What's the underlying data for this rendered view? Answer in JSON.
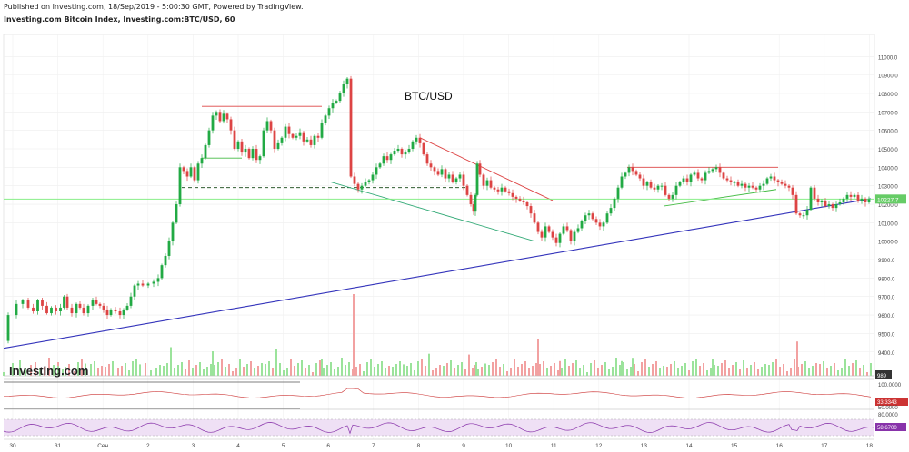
{
  "header": {
    "published": "Published on Investing.com, 18/Sep/2019 - 5:00:30 GMT, Powered by TradingView.",
    "symbol": "Investing.com Bitcoin Index, Investing.com:BTC/USD, 60"
  },
  "annotation": "BTC/USD",
  "logo": "Investing.com",
  "colors": {
    "up": "#22aa44",
    "down": "#dd4444",
    "up_vol": "#9be39b",
    "down_vol": "#f2a1a1",
    "trend_support": "#3333bb",
    "resistance": "#dd4444",
    "channel": "#33aa77",
    "support_green": "#44bb44",
    "dashed": "#114411",
    "price_line": "#88ee88",
    "price_badge": "#66cc66",
    "indicator2": "#cc3333",
    "rsi": "#8833aa",
    "rsi_fill": "#efe0f5",
    "vol_badge": "#333333"
  },
  "chart_data": {
    "type": "candlestick",
    "interval": "60",
    "ylim": [
      9330,
      11080
    ],
    "y_ticks": [
      "11000.0",
      "10900.0",
      "10800.0",
      "10700.0",
      "10600.0",
      "10500.0",
      "10400.0",
      "10300.0",
      "10200.0",
      "10100.0",
      "10000.0",
      "9900.0",
      "9800.0",
      "9700.0",
      "9600.0",
      "9500.0",
      "9400.0"
    ],
    "x_ticks": [
      "30",
      "31",
      "Сен",
      "2",
      "3",
      "4",
      "5",
      "6",
      "7",
      "8",
      "9",
      "10",
      "11",
      "12",
      "13",
      "14",
      "15",
      "16",
      "17",
      "18"
    ],
    "last_price": "10227.7",
    "price_path": [
      [
        0,
        9460
      ],
      [
        10,
        9600
      ],
      [
        18,
        9660
      ],
      [
        24,
        9680
      ],
      [
        30,
        9640
      ],
      [
        35,
        9620
      ],
      [
        40,
        9680
      ],
      [
        45,
        9650
      ],
      [
        50,
        9610
      ],
      [
        55,
        9640
      ],
      [
        60,
        9620
      ],
      [
        65,
        9640
      ],
      [
        68,
        9700
      ],
      [
        72,
        9640
      ],
      [
        78,
        9610
      ],
      [
        82,
        9660
      ],
      [
        86,
        9640
      ],
      [
        90,
        9610
      ],
      [
        96,
        9650
      ],
      [
        100,
        9680
      ],
      [
        104,
        9660
      ],
      [
        108,
        9650
      ],
      [
        112,
        9630
      ],
      [
        116,
        9600
      ],
      [
        120,
        9630
      ],
      [
        126,
        9620
      ],
      [
        130,
        9600
      ],
      [
        134,
        9630
      ],
      [
        138,
        9650
      ],
      [
        142,
        9700
      ],
      [
        146,
        9760
      ],
      [
        150,
        9770
      ],
      [
        156,
        9760
      ],
      [
        162,
        9770
      ],
      [
        168,
        9780
      ],
      [
        172,
        9800
      ],
      [
        176,
        9870
      ],
      [
        180,
        9920
      ],
      [
        184,
        10000
      ],
      [
        188,
        10100
      ],
      [
        192,
        10200
      ],
      [
        196,
        10400
      ],
      [
        200,
        10380
      ],
      [
        204,
        10350
      ],
      [
        208,
        10400
      ],
      [
        212,
        10330
      ],
      [
        216,
        10420
      ],
      [
        220,
        10450
      ],
      [
        224,
        10520
      ],
      [
        228,
        10600
      ],
      [
        232,
        10680
      ],
      [
        236,
        10700
      ],
      [
        240,
        10650
      ],
      [
        244,
        10690
      ],
      [
        248,
        10660
      ],
      [
        252,
        10600
      ],
      [
        256,
        10500
      ],
      [
        260,
        10540
      ],
      [
        264,
        10480
      ],
      [
        268,
        10500
      ],
      [
        272,
        10450
      ],
      [
        276,
        10500
      ],
      [
        280,
        10440
      ],
      [
        284,
        10460
      ],
      [
        288,
        10600
      ],
      [
        292,
        10650
      ],
      [
        296,
        10600
      ],
      [
        300,
        10500
      ],
      [
        304,
        10530
      ],
      [
        308,
        10560
      ],
      [
        312,
        10620
      ],
      [
        316,
        10580
      ],
      [
        320,
        10560
      ],
      [
        324,
        10570
      ],
      [
        328,
        10590
      ],
      [
        332,
        10540
      ],
      [
        336,
        10550
      ],
      [
        340,
        10520
      ],
      [
        344,
        10570
      ],
      [
        348,
        10560
      ],
      [
        352,
        10640
      ],
      [
        356,
        10680
      ],
      [
        360,
        10720
      ],
      [
        364,
        10750
      ],
      [
        368,
        10760
      ],
      [
        372,
        10800
      ],
      [
        376,
        10850
      ],
      [
        380,
        10880
      ],
      [
        384,
        10350
      ],
      [
        388,
        10310
      ],
      [
        392,
        10280
      ],
      [
        396,
        10300
      ],
      [
        400,
        10320
      ],
      [
        404,
        10330
      ],
      [
        408,
        10360
      ],
      [
        412,
        10400
      ],
      [
        416,
        10420
      ],
      [
        420,
        10460
      ],
      [
        424,
        10440
      ],
      [
        428,
        10470
      ],
      [
        432,
        10490
      ],
      [
        436,
        10500
      ],
      [
        440,
        10470
      ],
      [
        444,
        10480
      ],
      [
        448,
        10500
      ],
      [
        452,
        10540
      ],
      [
        456,
        10560
      ],
      [
        460,
        10530
      ],
      [
        464,
        10470
      ],
      [
        468,
        10420
      ],
      [
        472,
        10400
      ],
      [
        476,
        10380
      ],
      [
        480,
        10360
      ],
      [
        484,
        10390
      ],
      [
        488,
        10340
      ],
      [
        492,
        10360
      ],
      [
        496,
        10320
      ],
      [
        500,
        10340
      ],
      [
        504,
        10360
      ],
      [
        508,
        10300
      ],
      [
        512,
        10250
      ],
      [
        516,
        10200
      ],
      [
        518,
        10160
      ],
      [
        520,
        10250
      ],
      [
        522,
        10420
      ],
      [
        526,
        10360
      ],
      [
        530,
        10300
      ],
      [
        534,
        10330
      ],
      [
        538,
        10290
      ],
      [
        542,
        10280
      ],
      [
        546,
        10270
      ],
      [
        550,
        10290
      ],
      [
        554,
        10270
      ],
      [
        558,
        10260
      ],
      [
        562,
        10240
      ],
      [
        566,
        10230
      ],
      [
        570,
        10220
      ],
      [
        574,
        10210
      ],
      [
        578,
        10190
      ],
      [
        582,
        10150
      ],
      [
        586,
        10100
      ],
      [
        590,
        10050
      ],
      [
        594,
        10020
      ],
      [
        598,
        10080
      ],
      [
        602,
        10050
      ],
      [
        606,
        10020
      ],
      [
        610,
        9990
      ],
      [
        614,
        10040
      ],
      [
        618,
        10080
      ],
      [
        622,
        10060
      ],
      [
        626,
        10000
      ],
      [
        630,
        10050
      ],
      [
        634,
        10070
      ],
      [
        638,
        10110
      ],
      [
        642,
        10140
      ],
      [
        646,
        10150
      ],
      [
        650,
        10120
      ],
      [
        654,
        10100
      ],
      [
        658,
        10080
      ],
      [
        662,
        10100
      ],
      [
        666,
        10150
      ],
      [
        670,
        10180
      ],
      [
        674,
        10230
      ],
      [
        678,
        10290
      ],
      [
        682,
        10350
      ],
      [
        686,
        10370
      ],
      [
        690,
        10400
      ],
      [
        694,
        10380
      ],
      [
        698,
        10360
      ],
      [
        702,
        10340
      ],
      [
        706,
        10300
      ],
      [
        710,
        10320
      ],
      [
        714,
        10290
      ],
      [
        718,
        10280
      ],
      [
        722,
        10300
      ],
      [
        726,
        10300
      ],
      [
        730,
        10250
      ],
      [
        734,
        10230
      ],
      [
        738,
        10250
      ],
      [
        742,
        10300
      ],
      [
        746,
        10320
      ],
      [
        750,
        10340
      ],
      [
        754,
        10320
      ],
      [
        758,
        10360
      ],
      [
        762,
        10370
      ],
      [
        766,
        10340
      ],
      [
        770,
        10330
      ],
      [
        774,
        10370
      ],
      [
        778,
        10380
      ],
      [
        782,
        10390
      ],
      [
        786,
        10400
      ],
      [
        790,
        10370
      ],
      [
        794,
        10340
      ],
      [
        798,
        10330
      ],
      [
        802,
        10320
      ],
      [
        806,
        10320
      ],
      [
        810,
        10300
      ],
      [
        814,
        10310
      ],
      [
        818,
        10290
      ],
      [
        822,
        10300
      ],
      [
        826,
        10290
      ],
      [
        830,
        10280
      ],
      [
        834,
        10300
      ],
      [
        838,
        10310
      ],
      [
        842,
        10340
      ],
      [
        846,
        10350
      ],
      [
        850,
        10330
      ],
      [
        854,
        10320
      ],
      [
        858,
        10310
      ],
      [
        862,
        10300
      ],
      [
        866,
        10290
      ],
      [
        870,
        10250
      ],
      [
        874,
        10150
      ],
      [
        878,
        10140
      ],
      [
        882,
        10140
      ],
      [
        886,
        10170
      ],
      [
        890,
        10290
      ],
      [
        894,
        10230
      ],
      [
        898,
        10210
      ],
      [
        902,
        10220
      ],
      [
        906,
        10190
      ],
      [
        910,
        10200
      ],
      [
        914,
        10180
      ],
      [
        918,
        10200
      ],
      [
        922,
        10210
      ],
      [
        926,
        10230
      ],
      [
        930,
        10250
      ],
      [
        934,
        10240
      ],
      [
        938,
        10250
      ],
      [
        942,
        10220
      ],
      [
        946,
        10230
      ],
      [
        950,
        10210
      ],
      [
        954,
        10228
      ]
    ],
    "volume_spikes": [
      [
        385,
        1.0,
        0
      ],
      [
        588,
        0.45,
        0
      ],
      [
        873,
        0.42,
        0
      ],
      [
        184,
        0.35,
        1
      ],
      [
        230,
        0.3,
        1
      ],
      [
        300,
        0.33,
        1
      ],
      [
        468,
        0.27,
        1
      ],
      [
        512,
        0.26,
        0
      ],
      [
        692,
        0.22,
        1
      ],
      [
        780,
        0.2,
        1
      ],
      [
        680,
        0.18,
        1
      ],
      [
        350,
        0.2,
        1
      ],
      [
        612,
        0.18,
        0
      ],
      [
        530,
        0.15,
        1
      ],
      [
        440,
        0.14,
        1
      ],
      [
        90,
        0.15,
        1
      ],
      [
        60,
        0.12,
        1
      ],
      [
        150,
        0.14,
        1
      ]
    ],
    "indicator2_value": "33.3343",
    "rsi_value": "58.6700",
    "vol_value": "989",
    "indicator_ticks": [
      "100.0000",
      "50.0000",
      "80.0000"
    ]
  }
}
